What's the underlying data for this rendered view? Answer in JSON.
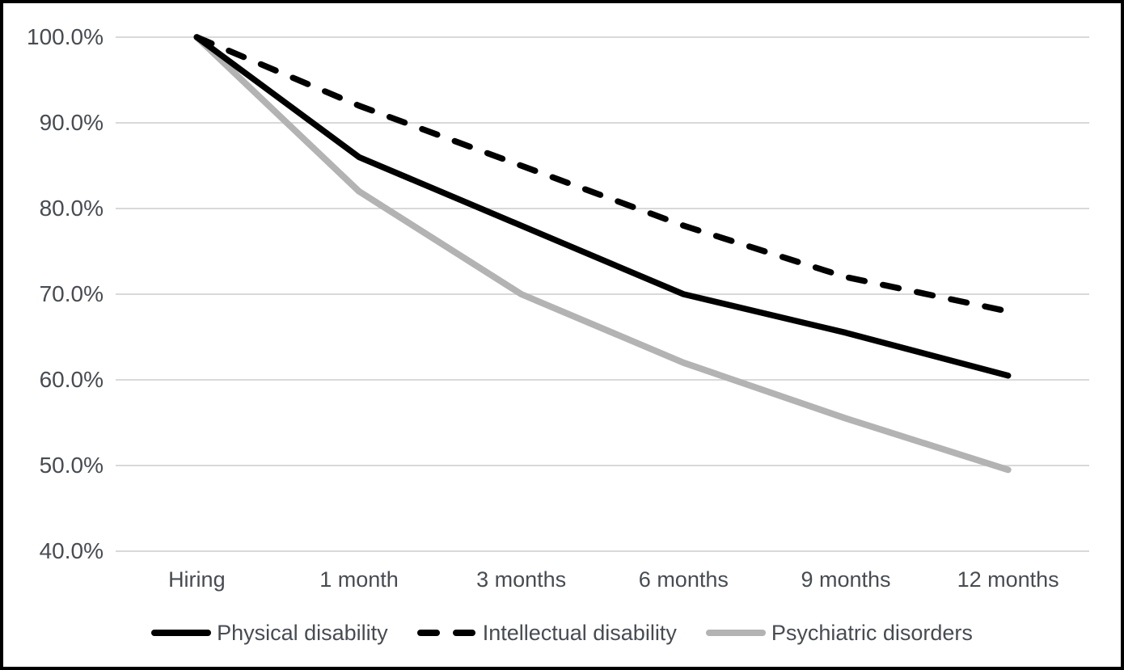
{
  "chart_data": {
    "type": "line",
    "title": "",
    "xlabel": "",
    "ylabel": "",
    "unit": "%",
    "categories": [
      "Hiring",
      "1 month",
      "3 months",
      "6 months",
      "9 months",
      "12 months"
    ],
    "series": [
      {
        "name": "Physical disability",
        "style": "solid",
        "color": "#000000",
        "values": [
          100,
          86,
          78,
          70,
          65.5,
          60.5
        ]
      },
      {
        "name": "Intellectual disability",
        "style": "dashed",
        "color": "#000000",
        "values": [
          100,
          92,
          85,
          78,
          72,
          68
        ]
      },
      {
        "name": "Psychiatric disorders",
        "style": "solid",
        "color": "#b3b3b3",
        "values": [
          100,
          82,
          70,
          62,
          55.5,
          49.5
        ]
      }
    ],
    "y_ticks": [
      {
        "label": "100.0%",
        "value": 100
      },
      {
        "label": "90.0%",
        "value": 90
      },
      {
        "label": "80.0%",
        "value": 80
      },
      {
        "label": "70.0%",
        "value": 70
      },
      {
        "label": "60.0%",
        "value": 60
      },
      {
        "label": "50.0%",
        "value": 50
      },
      {
        "label": "40.0%",
        "value": 40
      }
    ],
    "ylim": [
      40,
      100
    ],
    "grid": "horizontal",
    "legend_position": "bottom",
    "colors": {
      "gridline": "#d9d9d9",
      "axis_label": "#474c52",
      "frame_border": "#000000",
      "background": "#ffffff"
    }
  }
}
